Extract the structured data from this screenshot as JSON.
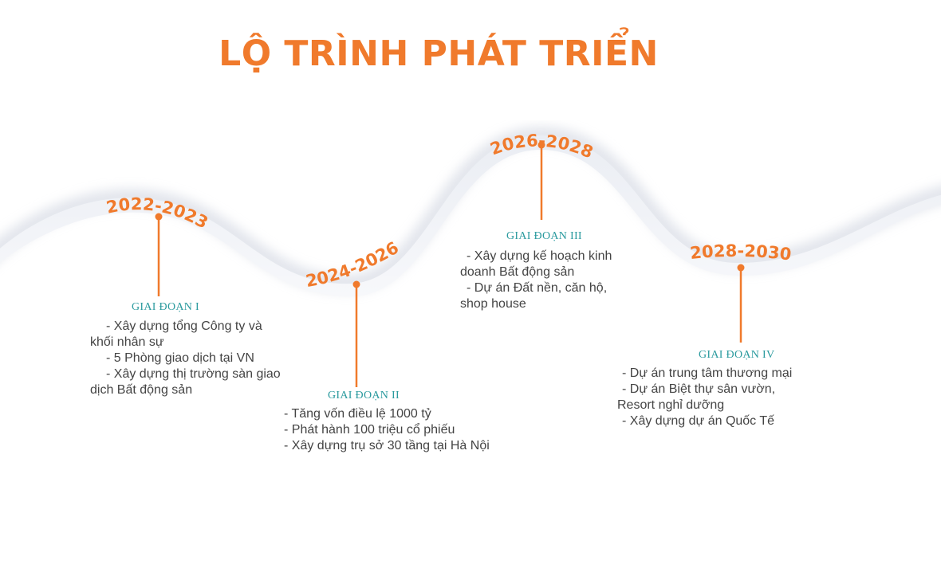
{
  "title": "LỘ TRÌNH PHÁT TRIỂN",
  "colors": {
    "accent": "#f07a2c",
    "stage_label": "#2a9a9e",
    "text": "#444444",
    "wave": "#eef0f5"
  },
  "stages": [
    {
      "years": "2022-2023",
      "label": "GIAI ĐOẠN I",
      "items": [
        "- Xây dựng tổng Công ty và khối nhân sự",
        "- 5 Phòng giao dịch tại VN",
        "- Xây dựng thị trường sàn giao dịch Bất động sản"
      ]
    },
    {
      "years": "2024-2026",
      "label": "GIAI ĐOẠN II",
      "items": [
        "- Tăng vốn điều lệ 1000 tỷ",
        "- Phát hành 100 triệu cổ phiếu",
        "- Xây dựng trụ sở 30 tầng tại Hà Nội"
      ]
    },
    {
      "years": "2026-2028",
      "label": "GIAI ĐOẠN III",
      "items": [
        "- Xây dựng kế hoạch kinh doanh Bất động sản",
        "- Dự án Đất nền, căn hộ, shop house"
      ]
    },
    {
      "years": "2028-2030",
      "label": "GIAI ĐOẠN IV",
      "items": [
        "- Dự án trung tâm thương mại",
        "- Dự án Biệt thự sân vườn, Resort nghỉ dưỡng",
        "- Xây dựng dự án Quốc Tế"
      ]
    }
  ]
}
